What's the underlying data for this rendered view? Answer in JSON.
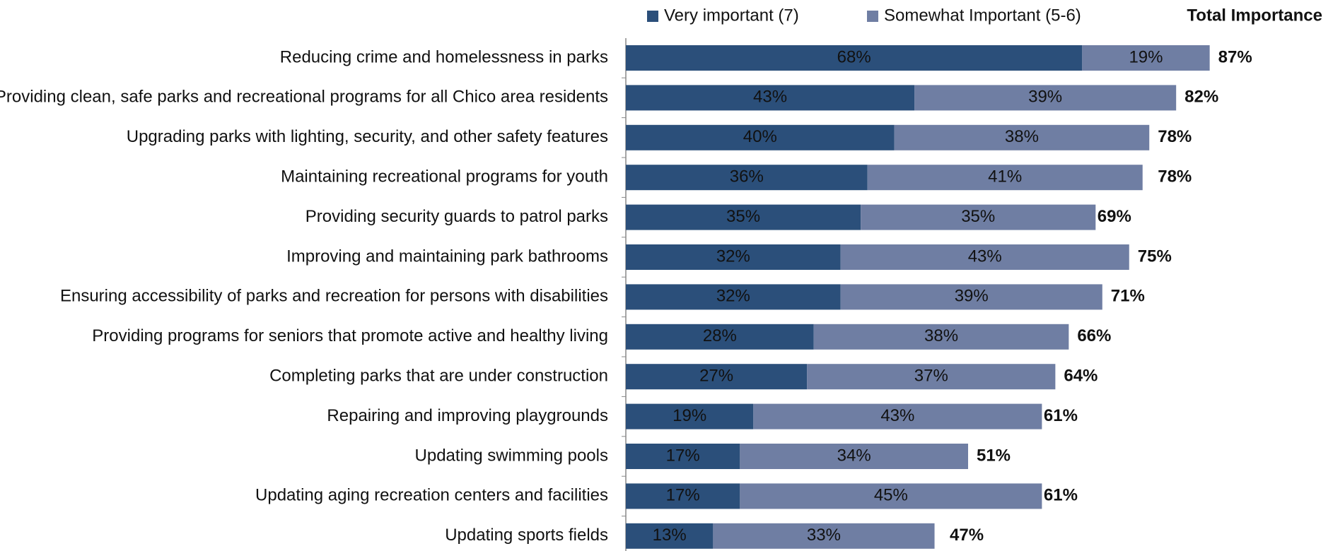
{
  "chart_data": {
    "type": "stacked-barh",
    "categories": [
      "Reducing crime and homelessness in parks",
      "Providing clean, safe parks and recreational programs for all Chico area residents",
      "Upgrading parks with lighting, security, and other safety features",
      "Maintaining recreational programs for youth",
      "Providing security guards to patrol parks",
      "Improving and maintaining park bathrooms",
      "Ensuring accessibility of parks and recreation for persons with disabilities",
      "Providing programs for seniors that promote active and healthy living",
      "Completing parks that are under construction",
      "Repairing and improving playgrounds",
      "Updating swimming pools",
      "Updating aging recreation centers and facilities",
      "Updating sports fields"
    ],
    "series": [
      {
        "name": "Very important (7)",
        "color": "#2b4f7a",
        "label_color": "#ffffff",
        "values": [
          68,
          43,
          40,
          36,
          35,
          32,
          32,
          28,
          27,
          19,
          17,
          17,
          13
        ],
        "value_labels": [
          "68%",
          "43%",
          "40%",
          "36%",
          "35%",
          "32%",
          "32%",
          "28%",
          "27%",
          "19%",
          "17%",
          "17%",
          "13%"
        ]
      },
      {
        "name": "Somewhat Important (5-6)",
        "color": "#6f7ea3",
        "label_color": "#1a1a1a",
        "values": [
          19,
          39,
          38,
          41,
          35,
          43,
          39,
          38,
          37,
          43,
          34,
          45,
          33
        ],
        "value_labels": [
          "19%",
          "39%",
          "38%",
          "41%",
          "35%",
          "43%",
          "39%",
          "38%",
          "37%",
          "43%",
          "34%",
          "45%",
          "33%"
        ]
      }
    ],
    "totals_title": "Total Importance",
    "totals": [
      87,
      82,
      78,
      78,
      69,
      75,
      71,
      66,
      64,
      61,
      51,
      61,
      47
    ],
    "total_labels": [
      "87%",
      "82%",
      "78%",
      "78%",
      "69%",
      "75%",
      "71%",
      "66%",
      "64%",
      "61%",
      "51%",
      "61%",
      "47%"
    ],
    "xlim": [
      0,
      100
    ]
  }
}
